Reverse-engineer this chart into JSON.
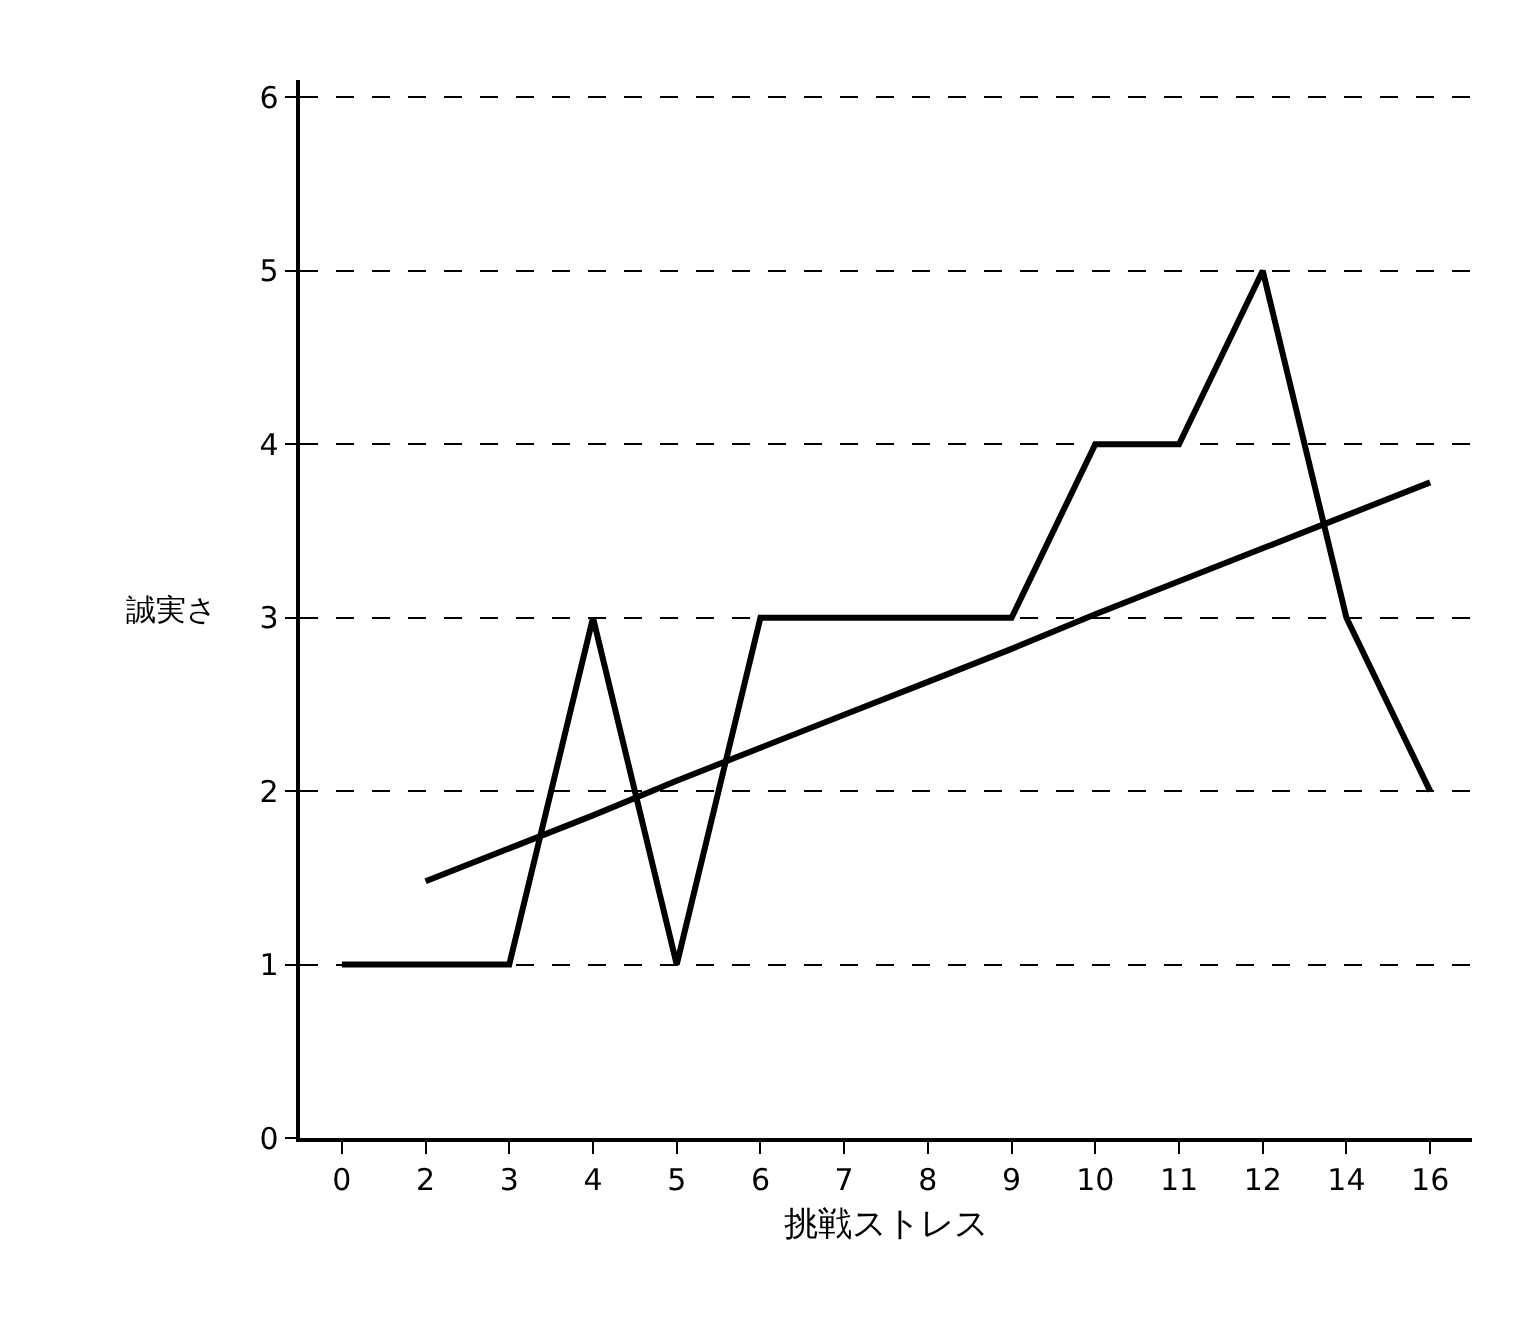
{
  "chart_data": {
    "type": "line",
    "xlabel": "挑戦ストレス",
    "ylabel": "誠実さ",
    "categories": [
      "0",
      "2",
      "3",
      "4",
      "5",
      "6",
      "7",
      "8",
      "9",
      "10",
      "11",
      "12",
      "14",
      "16"
    ],
    "series": [
      {
        "color": "#000000",
        "values": [
          1,
          1,
          1,
          3,
          1,
          3,
          3,
          3,
          3,
          4,
          4,
          5,
          3,
          2
        ]
      },
      {
        "color": "#000000",
        "values": [
          null,
          1.48,
          1.67,
          1.86,
          2.06,
          2.25,
          2.44,
          2.63,
          2.82,
          3.02,
          3.21,
          3.4,
          3.59,
          3.78
        ]
      }
    ],
    "ylim": [
      0,
      6.1
    ],
    "yticks": [
      0,
      1,
      2,
      3,
      4,
      5,
      6
    ],
    "grid": "y",
    "marker": "none",
    "line_style": "solid"
  }
}
